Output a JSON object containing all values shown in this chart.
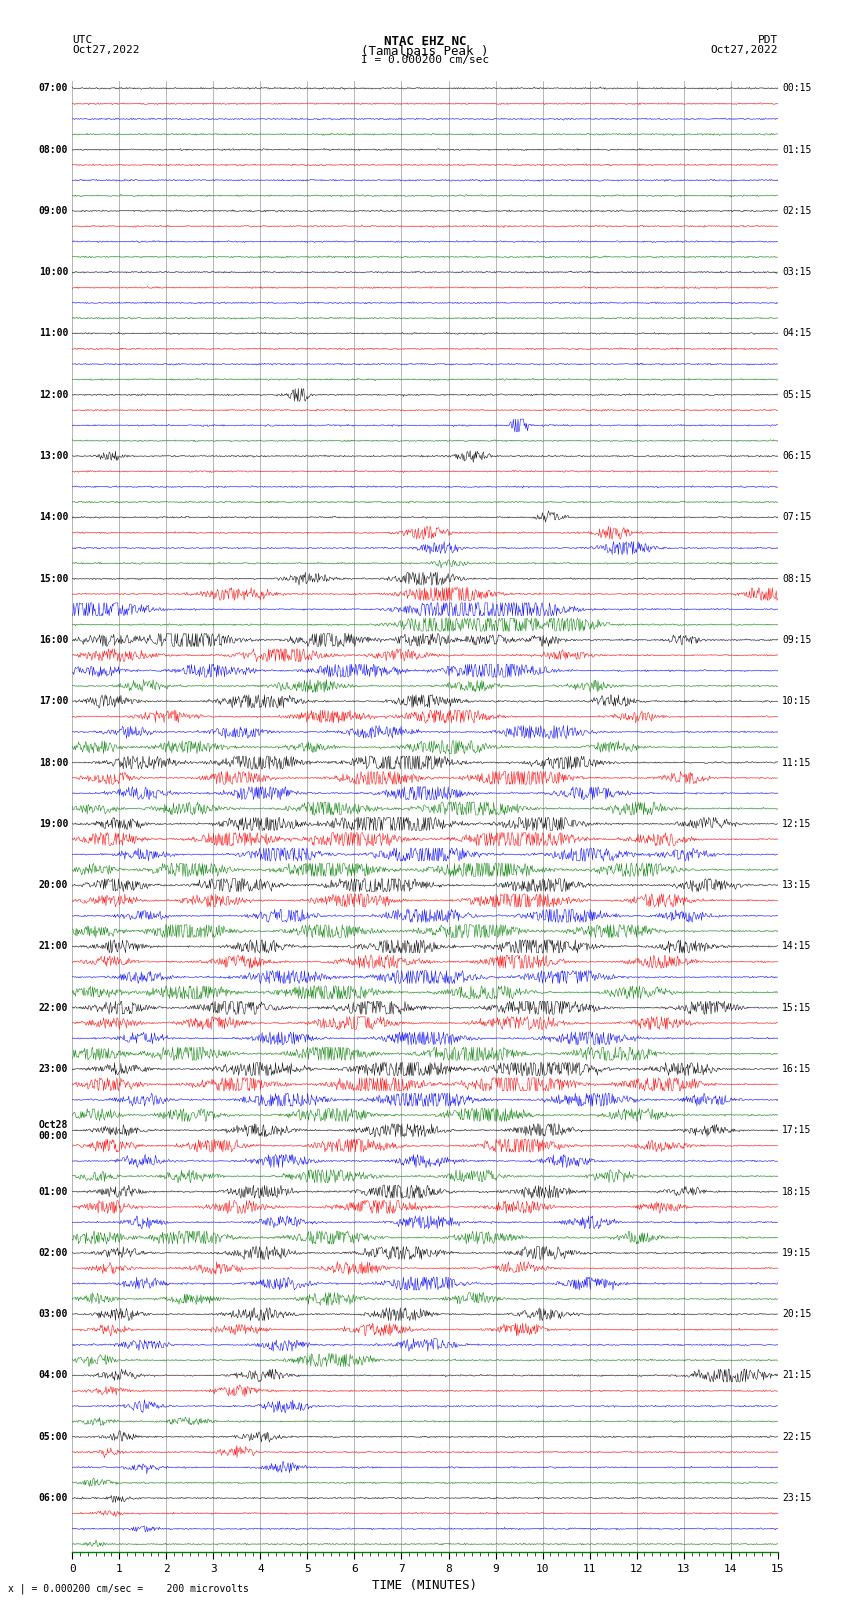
{
  "title_line1": "NTAC EHZ NC",
  "title_line2": "(Tamalpais Peak )",
  "scale_label": "I = 0.000200 cm/sec",
  "left_header_line1": "UTC",
  "left_header_line2": "Oct27,2022",
  "right_header_line1": "PDT",
  "right_header_line2": "Oct27,2022",
  "bottom_note": "x | = 0.000200 cm/sec =    200 microvolts",
  "xlabel": "TIME (MINUTES)",
  "xlim": [
    0,
    15
  ],
  "xticks": [
    0,
    1,
    2,
    3,
    4,
    5,
    6,
    7,
    8,
    9,
    10,
    11,
    12,
    13,
    14,
    15
  ],
  "left_times": [
    "07:00",
    "",
    "",
    "",
    "08:00",
    "",
    "",
    "",
    "09:00",
    "",
    "",
    "",
    "10:00",
    "",
    "",
    "",
    "11:00",
    "",
    "",
    "",
    "12:00",
    "",
    "",
    "",
    "13:00",
    "",
    "",
    "",
    "14:00",
    "",
    "",
    "",
    "15:00",
    "",
    "",
    "",
    "16:00",
    "",
    "",
    "",
    "17:00",
    "",
    "",
    "",
    "18:00",
    "",
    "",
    "",
    "19:00",
    "",
    "",
    "",
    "20:00",
    "",
    "",
    "",
    "21:00",
    "",
    "",
    "",
    "22:00",
    "",
    "",
    "",
    "23:00",
    "",
    "",
    "",
    "Oct28\n00:00",
    "",
    "",
    "",
    "01:00",
    "",
    "",
    "",
    "02:00",
    "",
    "",
    "",
    "03:00",
    "",
    "",
    "",
    "04:00",
    "",
    "",
    "",
    "05:00",
    "",
    "",
    "",
    "06:00",
    "",
    "",
    ""
  ],
  "right_times": [
    "00:15",
    "",
    "",
    "",
    "01:15",
    "",
    "",
    "",
    "02:15",
    "",
    "",
    "",
    "03:15",
    "",
    "",
    "",
    "04:15",
    "",
    "",
    "",
    "05:15",
    "",
    "",
    "",
    "06:15",
    "",
    "",
    "",
    "07:15",
    "",
    "",
    "",
    "08:15",
    "",
    "",
    "",
    "09:15",
    "",
    "",
    "",
    "10:15",
    "",
    "",
    "",
    "11:15",
    "",
    "",
    "",
    "12:15",
    "",
    "",
    "",
    "13:15",
    "",
    "",
    "",
    "14:15",
    "",
    "",
    "",
    "15:15",
    "",
    "",
    "",
    "16:15",
    "",
    "",
    "",
    "17:15",
    "",
    "",
    "",
    "18:15",
    "",
    "",
    "",
    "19:15",
    "",
    "",
    "",
    "20:15",
    "",
    "",
    "",
    "21:15",
    "",
    "",
    "",
    "22:15",
    "",
    "",
    "",
    "23:15",
    "",
    "",
    ""
  ],
  "n_rows": 96,
  "colors_cycle": [
    "black",
    "red",
    "blue",
    "green"
  ],
  "bg_color": "white",
  "grid_color": "#999999",
  "noise_base": 0.025,
  "figsize": [
    8.5,
    16.13
  ],
  "dpi": 100
}
